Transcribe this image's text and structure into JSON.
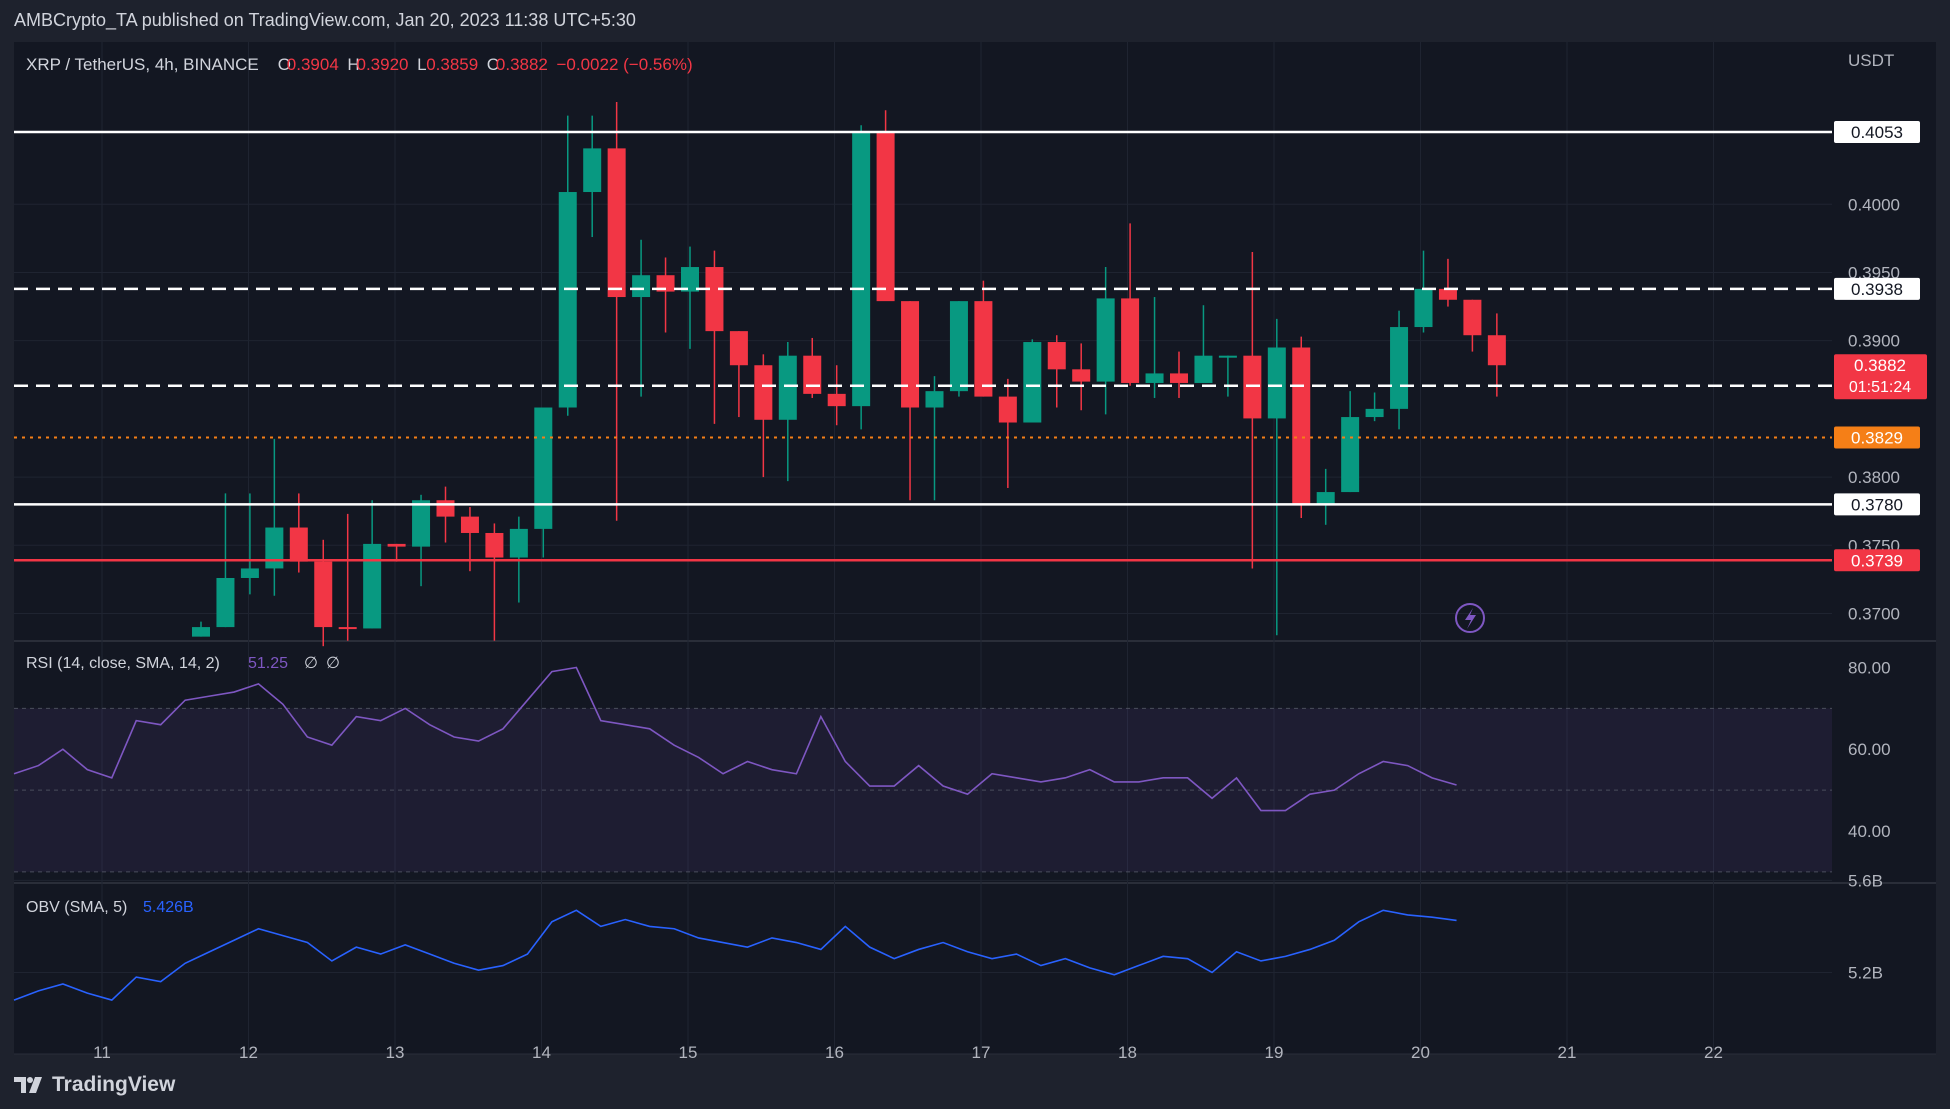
{
  "header": {
    "publisher": "AMBCrypto_TA published on TradingView.com, Jan 20, 2023 11:38 UTC+5:30"
  },
  "footer": {
    "brand": "TradingView"
  },
  "colors": {
    "background": "#131722",
    "frame": "#1e222d",
    "up": "#089981",
    "down": "#f23645",
    "text": "#d1d4dc",
    "axis_text": "#b2b5be",
    "rsi": "#7e57c2",
    "obv": "#2962ff",
    "highlight": "#f57f17"
  },
  "chart_data": [
    {
      "type": "candlestick",
      "symbol": "XRP / TetherUS, 4h, BINANCE",
      "legend": {
        "o_label": "O",
        "o": "0.3904",
        "h_label": "H",
        "h": "0.3920",
        "l_label": "L",
        "l": "0.3859",
        "c_label": "C",
        "c": "0.3882",
        "change": "−0.0022 (−0.56%)"
      },
      "currency": "USDT",
      "ylim": [
        0.3682,
        0.4119
      ],
      "y_ticks": [
        "0.4000",
        "0.3950",
        "0.3900",
        "0.3800",
        "0.3750",
        "0.3700"
      ],
      "x_ticks": [
        "11",
        "12",
        "13",
        "14",
        "15",
        "16",
        "17",
        "18",
        "19",
        "20",
        "21",
        "22"
      ],
      "candles": [
        [
          0.3683,
          0.3694,
          0.3683,
          0.369
        ],
        [
          0.369,
          0.3788,
          0.369,
          0.3726
        ],
        [
          0.3726,
          0.3788,
          0.3714,
          0.3733
        ],
        [
          0.3733,
          0.3828,
          0.3713,
          0.3763
        ],
        [
          0.3763,
          0.3788,
          0.373,
          0.3738
        ],
        [
          0.3738,
          0.3754,
          0.3676,
          0.369
        ],
        [
          0.369,
          0.3773,
          0.368,
          0.3689
        ],
        [
          0.3689,
          0.3783,
          0.3689,
          0.3751
        ],
        [
          0.3751,
          0.3751,
          0.3738,
          0.3749
        ],
        [
          0.3749,
          0.3787,
          0.372,
          0.3783
        ],
        [
          0.3783,
          0.3793,
          0.3752,
          0.3771
        ],
        [
          0.3771,
          0.3778,
          0.3731,
          0.3759
        ],
        [
          0.3759,
          0.3766,
          0.368,
          0.3741
        ],
        [
          0.3741,
          0.3771,
          0.3708,
          0.3762
        ],
        [
          0.3762,
          0.385,
          0.3741,
          0.3851
        ],
        [
          0.3851,
          0.4065,
          0.3845,
          0.4009
        ],
        [
          0.4009,
          0.4065,
          0.3976,
          0.4041
        ],
        [
          0.4041,
          0.4075,
          0.3768,
          0.3932
        ],
        [
          0.3932,
          0.3974,
          0.3859,
          0.3948
        ],
        [
          0.3948,
          0.3961,
          0.3906,
          0.3936
        ],
        [
          0.3936,
          0.3969,
          0.3894,
          0.3954
        ],
        [
          0.3954,
          0.3966,
          0.3839,
          0.3907
        ],
        [
          0.3907,
          0.3907,
          0.3844,
          0.3882
        ],
        [
          0.3882,
          0.389,
          0.38,
          0.3842
        ],
        [
          0.3842,
          0.3899,
          0.3797,
          0.3889
        ],
        [
          0.3889,
          0.3902,
          0.3858,
          0.3861
        ],
        [
          0.3861,
          0.3882,
          0.3838,
          0.3852
        ],
        [
          0.3852,
          0.4058,
          0.3835,
          0.4053
        ],
        [
          0.4053,
          0.4069,
          0.393,
          0.3929
        ],
        [
          0.3929,
          0.3929,
          0.3783,
          0.3851
        ],
        [
          0.3851,
          0.3874,
          0.3783,
          0.3863
        ],
        [
          0.3863,
          0.3929,
          0.3859,
          0.3929
        ],
        [
          0.3929,
          0.3944,
          0.3859,
          0.3859
        ],
        [
          0.3859,
          0.3872,
          0.3792,
          0.384
        ],
        [
          0.384,
          0.3901,
          0.384,
          0.3899
        ],
        [
          0.3899,
          0.3904,
          0.3851,
          0.3879
        ],
        [
          0.3879,
          0.3898,
          0.3849,
          0.387
        ],
        [
          0.387,
          0.3954,
          0.3846,
          0.3931
        ],
        [
          0.3931,
          0.3986,
          0.3867,
          0.3869
        ],
        [
          0.3869,
          0.3932,
          0.3858,
          0.3876
        ],
        [
          0.3876,
          0.3892,
          0.3858,
          0.3869
        ],
        [
          0.3869,
          0.3926,
          0.3869,
          0.3889
        ],
        [
          0.3889,
          0.3889,
          0.3859,
          0.3889
        ],
        [
          0.3889,
          0.3965,
          0.3733,
          0.3843
        ],
        [
          0.3843,
          0.3916,
          0.3684,
          0.3895
        ],
        [
          0.3895,
          0.3903,
          0.377,
          0.378
        ],
        [
          0.378,
          0.3806,
          0.3765,
          0.3789
        ],
        [
          0.3789,
          0.3863,
          0.3789,
          0.3844
        ],
        [
          0.3844,
          0.3862,
          0.3841,
          0.385
        ],
        [
          0.385,
          0.3922,
          0.3835,
          0.391
        ],
        [
          0.391,
          0.3966,
          0.3906,
          0.3938
        ],
        [
          0.3938,
          0.396,
          0.3925,
          0.393
        ],
        [
          0.393,
          0.393,
          0.3892,
          0.3904
        ],
        [
          0.3904,
          0.392,
          0.3859,
          0.3882
        ]
      ],
      "horizontal_lines": [
        {
          "price": 0.4053,
          "style": "solid",
          "color": "#ffffff",
          "label": "0.4053"
        },
        {
          "price": 0.3938,
          "style": "dashed",
          "color": "#ffffff",
          "label": "0.3938"
        },
        {
          "price": 0.3867,
          "style": "dashed",
          "color": "#ffffff",
          "label": "0.3867"
        },
        {
          "price": 0.3829,
          "style": "dotted",
          "color": "#f57f17",
          "label": "0.3829"
        },
        {
          "price": 0.378,
          "style": "solid",
          "color": "#ffffff",
          "label": "0.3780"
        },
        {
          "price": 0.3739,
          "style": "solid",
          "color": "#f23645",
          "label": "0.3739"
        }
      ],
      "last_price": {
        "value": "0.3882",
        "countdown": "01:51:24"
      }
    },
    {
      "type": "line",
      "title": "RSI (14, close, SMA, 14, 2)",
      "value_label": "51.25",
      "extra_labels": [
        "∅",
        "∅"
      ],
      "ylim": [
        28,
        86
      ],
      "y_ticks": [
        "80.00",
        "60.00",
        "40.00"
      ],
      "band": [
        30,
        70
      ],
      "midline": 50,
      "values": [
        54,
        56,
        60,
        55,
        53,
        67,
        66,
        72,
        73,
        74,
        76,
        71,
        63,
        61,
        68,
        67,
        70,
        66,
        63,
        62,
        65,
        72,
        79,
        80,
        67,
        66,
        65,
        61,
        58,
        54,
        57,
        55,
        54,
        68,
        57,
        51,
        51,
        56,
        51,
        49,
        54,
        53,
        52,
        53,
        55,
        52,
        52,
        53,
        53,
        48,
        53,
        45,
        45,
        49,
        50,
        54,
        57,
        56,
        53,
        51.25
      ]
    },
    {
      "type": "line",
      "title": "OBV (SMA, 5)",
      "value_label": "5.426B",
      "y_ticks": [
        "5.6B",
        "5.2B"
      ],
      "ylim": [
        4.95,
        5.58
      ],
      "values": [
        5.08,
        5.12,
        5.15,
        5.11,
        5.08,
        5.18,
        5.16,
        5.24,
        5.29,
        5.34,
        5.39,
        5.36,
        5.33,
        5.25,
        5.31,
        5.28,
        5.32,
        5.28,
        5.24,
        5.21,
        5.23,
        5.28,
        5.42,
        5.47,
        5.4,
        5.43,
        5.4,
        5.39,
        5.35,
        5.33,
        5.31,
        5.35,
        5.33,
        5.3,
        5.4,
        5.31,
        5.26,
        5.3,
        5.33,
        5.29,
        5.26,
        5.28,
        5.23,
        5.26,
        5.22,
        5.19,
        5.23,
        5.27,
        5.26,
        5.2,
        5.29,
        5.25,
        5.27,
        5.3,
        5.34,
        5.42,
        5.47,
        5.45,
        5.44,
        5.426
      ]
    }
  ]
}
